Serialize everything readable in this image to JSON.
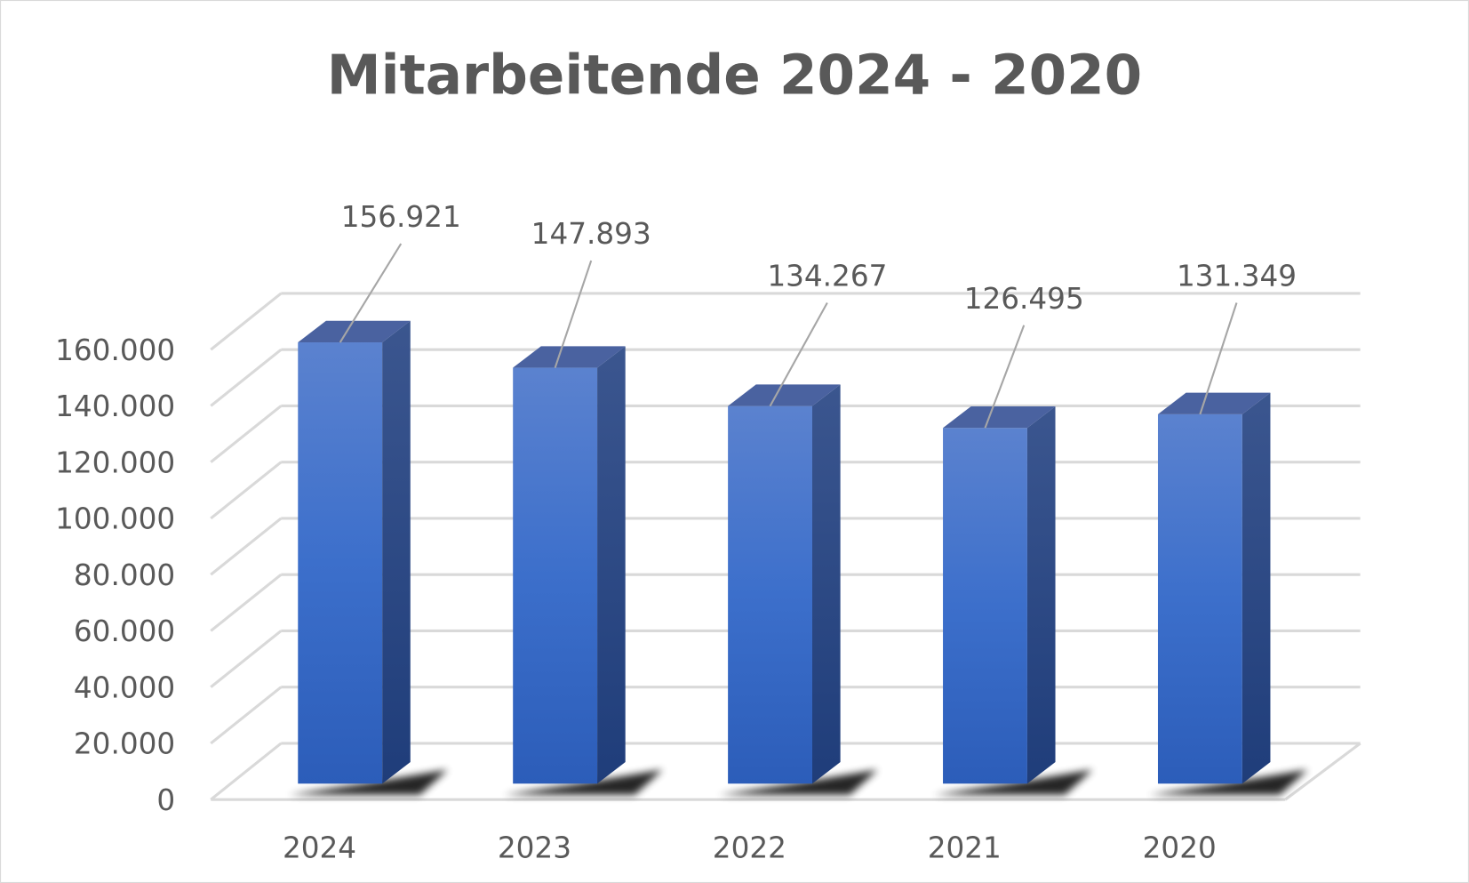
{
  "chart_data": {
    "type": "bar",
    "style": "3d-column",
    "title": "Mitarbeitende 2024 - 2020",
    "categories": [
      "2024",
      "2023",
      "2022",
      "2021",
      "2020"
    ],
    "values": [
      156921,
      147893,
      134267,
      126495,
      131349
    ],
    "data_labels": [
      "156.921",
      "147.893",
      "134.267",
      "126.495",
      "131.349"
    ],
    "xlabel": "",
    "ylabel": "",
    "ylim": [
      0,
      160000
    ],
    "y_ticks": [
      "0",
      "20.000",
      "40.000",
      "60.000",
      "80.000",
      "100.000",
      "120.000",
      "140.000",
      "160.000"
    ],
    "grid": true,
    "legend": "none",
    "colors": {
      "bar": "#4472C4",
      "bar_side": "#2F4E8F",
      "title": "#595959",
      "grid": "#D9D9D9"
    }
  }
}
